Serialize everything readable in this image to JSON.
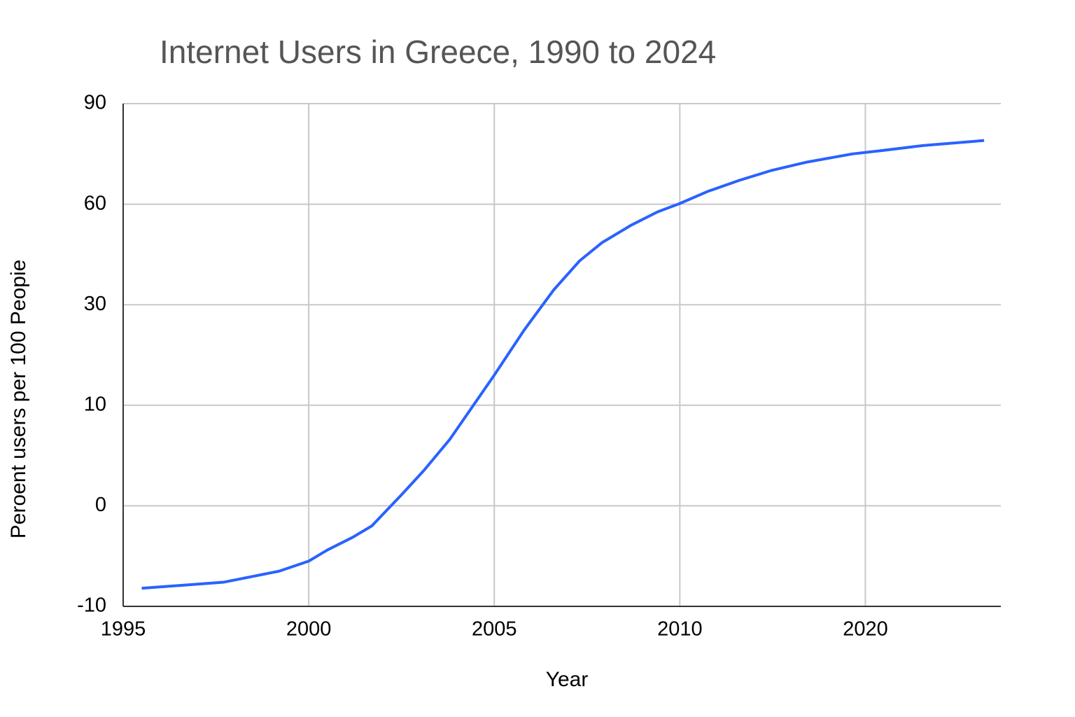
{
  "chart_data": {
    "type": "line",
    "title": "Internet Users in Greece, 1990 to 2024",
    "x_label": "Year",
    "y_label": "Peroent users per 100 Peopie",
    "scale": "piecewise-linear between ticks",
    "x": [
      1995.5,
      1997.7,
      1999.2,
      2000.0,
      2000.5,
      2001.2,
      2001.7,
      2002.5,
      2003.1,
      2003.8,
      2005.0,
      2005.8,
      2006.6,
      2007.3,
      2007.9,
      2008.7,
      2009.4,
      2010.0,
      2011.5,
      2013.2,
      2014.9,
      2016.8,
      2019.3,
      2020.9,
      2023.1,
      2026.4
    ],
    "series": [
      {
        "color": "#2962ff",
        "values": [
          -8.2,
          -7.6,
          -6.5,
          -5.5,
          -4.4,
          -3.1,
          -2.0,
          1.1,
          3.5,
          6.6,
          16.0,
          24.9,
          34.4,
          43.1,
          48.5,
          53.8,
          57.7,
          60.2,
          63.8,
          67.1,
          70.0,
          72.5,
          75.0,
          76.0,
          77.5,
          79.0
        ]
      }
    ],
    "xlim": [
      1995,
      2027.3
    ],
    "xticks": [
      1995,
      2000,
      2005,
      2010,
      2020
    ],
    "ylim": [
      -10,
      90
    ],
    "yticks": [
      -10,
      0,
      10,
      30,
      60,
      90
    ],
    "grid": true
  }
}
